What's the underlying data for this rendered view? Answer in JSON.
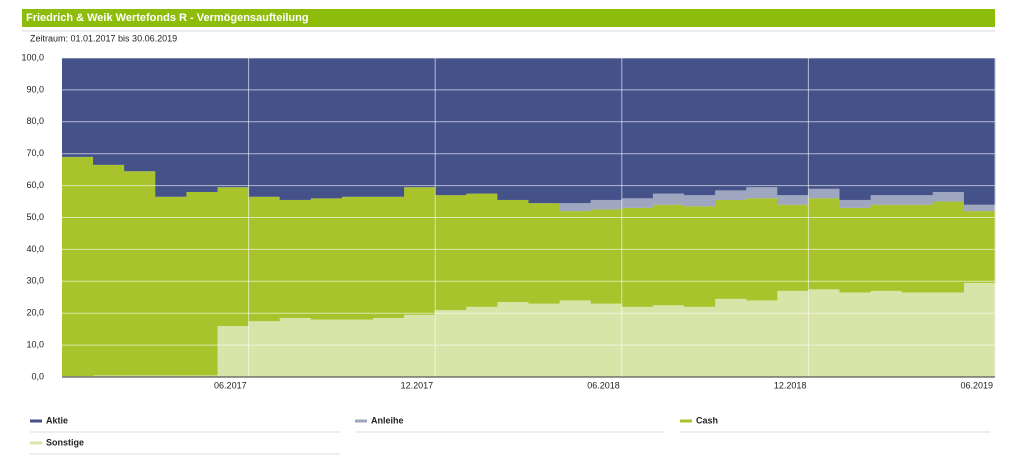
{
  "chart_data": {
    "type": "stacked_step_area",
    "title": "Friedrich & Weik Wertefonds R - Vermögensaufteilung",
    "subtitle": "Zeitraum: 01.01.2017 bis 30.06.2019",
    "categories": [
      null,
      null,
      null,
      null,
      null,
      "06.2017",
      null,
      null,
      null,
      null,
      null,
      "12.2017",
      null,
      null,
      null,
      null,
      null,
      "06.2018",
      null,
      null,
      null,
      null,
      null,
      "12.2018",
      null,
      null,
      null,
      null,
      null,
      "06.2019"
    ],
    "series": [
      {
        "name": "Aktie",
        "color": "#45528a",
        "values": [
          31,
          33.5,
          35.5,
          43.5,
          42,
          40.5,
          43.5,
          44.5,
          44,
          43.5,
          43.5,
          40.5,
          43,
          42.5,
          44.5,
          45.5,
          45.5,
          44.5,
          44,
          42.5,
          43,
          41.5,
          40.5,
          43,
          41,
          44.5,
          43,
          43,
          42,
          46
        ]
      },
      {
        "name": "Anleihe",
        "color": "#9ea7bf",
        "values": [
          0,
          0,
          0,
          0,
          0,
          0,
          0,
          0,
          0,
          0,
          0,
          0,
          0,
          0,
          0,
          0,
          2.5,
          3,
          3,
          3.5,
          3.5,
          3,
          3.5,
          3,
          3,
          2.5,
          3,
          3,
          3,
          2
        ]
      },
      {
        "name": "Cash",
        "color": "#a8c32b",
        "values": [
          68.7,
          66,
          64,
          56,
          57.5,
          43.5,
          39,
          37,
          38,
          38.5,
          38,
          40,
          36,
          35.5,
          32,
          31.5,
          28,
          29.5,
          31,
          31.5,
          31.5,
          31,
          32,
          27,
          28.5,
          26.5,
          27,
          27.5,
          28.5,
          22.5
        ]
      },
      {
        "name": "Sonstige",
        "color": "#d8e4a8",
        "values": [
          0.3,
          0.5,
          0.5,
          0.5,
          0.5,
          16,
          17.5,
          18.5,
          18,
          18,
          18.5,
          19.5,
          21,
          22,
          23.5,
          23,
          24,
          23,
          22,
          22.5,
          22,
          24.5,
          24,
          27,
          27.5,
          26.5,
          27,
          26.5,
          26.5,
          29.5
        ]
      }
    ],
    "ylim": [
      0,
      100
    ],
    "yticks": [
      {
        "value": 0,
        "label": "0,0"
      },
      {
        "value": 10,
        "label": "10,0"
      },
      {
        "value": 20,
        "label": "20,0"
      },
      {
        "value": 30,
        "label": "30,0"
      },
      {
        "value": 40,
        "label": "40,0"
      },
      {
        "value": 50,
        "label": "50,0"
      },
      {
        "value": 60,
        "label": "60,0"
      },
      {
        "value": 70,
        "label": "70,0"
      },
      {
        "value": 80,
        "label": "80,0"
      },
      {
        "value": 90,
        "label": "90,0"
      },
      {
        "value": 100,
        "label": "100,0"
      }
    ],
    "grid": true
  }
}
